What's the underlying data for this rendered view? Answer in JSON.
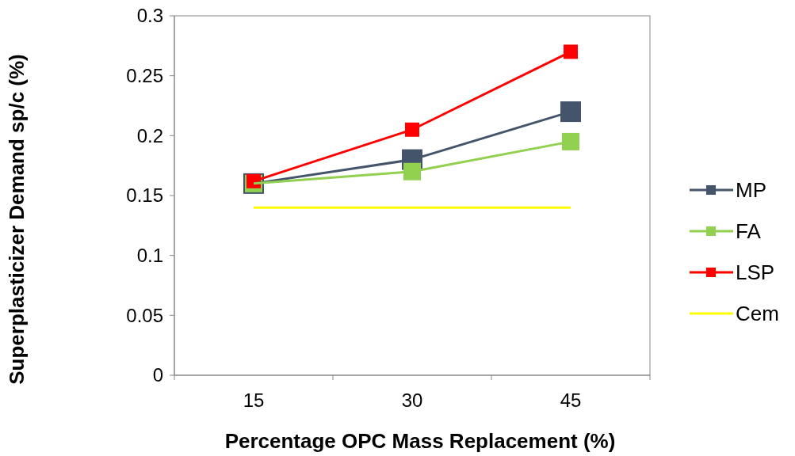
{
  "chart_data": {
    "type": "line",
    "xlabel": "Percentage OPC Mass Replacement (%)",
    "ylabel": "Superplasticizer Demand sp/c (%)",
    "categories": [
      "15",
      "30",
      "45"
    ],
    "ylim": [
      0,
      0.3
    ],
    "yticks": [
      0,
      0.05,
      0.1,
      0.15,
      0.2,
      0.25,
      0.3
    ],
    "series": [
      {
        "name": "MP",
        "color": "#44546a",
        "values": [
          0.16,
          0.18,
          0.22
        ]
      },
      {
        "name": "FA",
        "color": "#92d050",
        "values": [
          0.16,
          0.17,
          0.195
        ]
      },
      {
        "name": "LSP",
        "color": "#ff0000",
        "values": [
          0.162,
          0.205,
          0.27
        ]
      },
      {
        "name": "Cem",
        "color": "#ffff00",
        "values": [
          0.14,
          0.14,
          0.14
        ],
        "marker": "none"
      }
    ],
    "marker": "square",
    "line_style": "solid",
    "grid": false,
    "legend": "right"
  }
}
